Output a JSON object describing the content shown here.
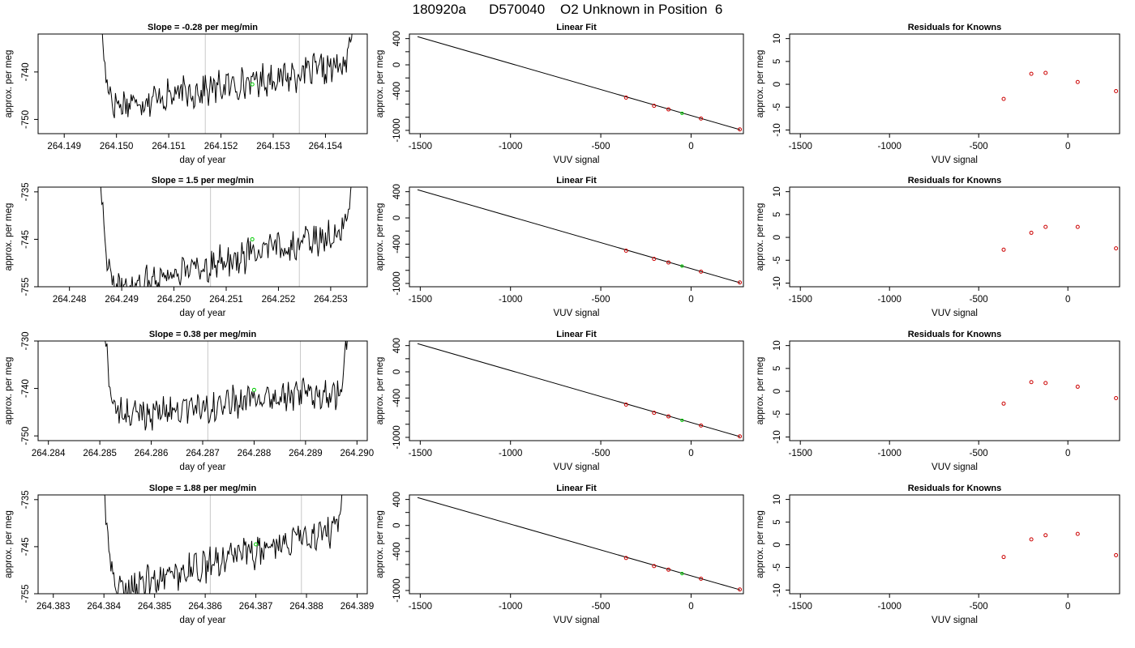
{
  "main_title": "180920a      D570040    O2 Unknown in Position  6",
  "chart_data": [
    {
      "type": "line",
      "title": "Slope =  -0.28  per meg/min",
      "xlabel": "day of year",
      "ylabel": "approx. per meg",
      "xlim": [
        264.1485,
        264.1548
      ],
      "ylim": [
        -753,
        -732
      ],
      "xticks": [
        "264.149",
        "264.150",
        "264.151",
        "264.152",
        "264.153",
        "264.154"
      ],
      "yticks": [
        "-740",
        "-750"
      ],
      "vlines": [
        264.1517,
        264.1535
      ],
      "trace": {
        "x_start": 264.1497,
        "x_end": 264.1545,
        "start_level": -747.5,
        "end_level": -738.5,
        "lead_in_top": -730,
        "lead_out_top": -732
      },
      "marker": {
        "x": 264.1526,
        "y": -742.6,
        "color": "#00cc00"
      }
    },
    {
      "type": "line",
      "title": "Slope =  1.5  per meg/min",
      "xlabel": "day of year",
      "ylabel": "approx. per meg",
      "xlim": [
        264.2474,
        264.2537
      ],
      "ylim": [
        -755,
        -734
      ],
      "xticks": [
        "264.248",
        "264.249",
        "264.250",
        "264.251",
        "264.252",
        "264.253"
      ],
      "yticks": [
        "-735",
        "-745",
        "-755"
      ],
      "vlines": [
        264.2507,
        264.2524
      ],
      "trace": {
        "x_start": 264.2486,
        "x_end": 264.2534,
        "start_level": -756,
        "end_level": -743,
        "lead_in_top": -733,
        "lead_out_top": -734
      },
      "marker": {
        "x": 264.2515,
        "y": -745,
        "color": "#00cc00"
      }
    },
    {
      "type": "line",
      "title": "Slope =  0.38  per meg/min",
      "xlabel": "day of year",
      "ylabel": "approx. per meg",
      "xlim": [
        264.2838,
        264.2902
      ],
      "ylim": [
        -751,
        -730
      ],
      "xticks": [
        "264.284",
        "264.285",
        "264.286",
        "264.287",
        "264.288",
        "264.289",
        "264.290"
      ],
      "yticks": [
        "-730",
        "-740",
        "-750"
      ],
      "vlines": [
        264.2871,
        264.2889
      ],
      "trace": {
        "x_start": 264.2851,
        "x_end": 264.2898,
        "start_level": -746,
        "end_level": -740.5,
        "lead_in_top": -729,
        "lead_out_top": -730
      },
      "marker": {
        "x": 264.288,
        "y": -740.3,
        "color": "#00cc00"
      }
    },
    {
      "type": "line",
      "title": "Slope =  1.88  per meg/min",
      "xlabel": "day of year",
      "ylabel": "approx. per meg",
      "xlim": [
        264.3827,
        264.3892
      ],
      "ylim": [
        -755,
        -734
      ],
      "xticks": [
        "264.383",
        "264.384",
        "264.385",
        "264.386",
        "264.387",
        "264.388",
        "264.389"
      ],
      "yticks": [
        "-735",
        "-745",
        "-755"
      ],
      "vlines": [
        264.3861,
        264.3879
      ],
      "trace": {
        "x_start": 264.384,
        "x_end": 264.3887,
        "start_level": -755,
        "end_level": -741,
        "lead_in_top": -733,
        "lead_out_top": -734
      },
      "marker": {
        "x": 264.387,
        "y": -744.5,
        "color": "#00cc00"
      }
    },
    {
      "type": "scatter",
      "title": "Linear Fit",
      "xlabel": "VUV signal",
      "ylabel": "approx. per meg",
      "xlim": [
        -1560,
        290
      ],
      "ylim": [
        -1050,
        470
      ],
      "xticks": [
        -1500,
        -1000,
        -500,
        0
      ],
      "yticks": [
        400,
        0,
        -400,
        -1000
      ],
      "yticks_minor": [
        200,
        -200,
        -600,
        -800
      ],
      "fit_line": [
        [
          -1515,
          430
        ],
        [
          272,
          -990
        ]
      ],
      "points": [
        [
          -360,
          -500
        ],
        [
          -205,
          -625
        ],
        [
          -125,
          -680
        ],
        [
          55,
          -820
        ],
        [
          270,
          -985
        ]
      ],
      "unknown": [
        -50,
        -740
      ],
      "point_color": "#cc0000",
      "unknown_color": "#00cc00"
    },
    {
      "type": "scatter",
      "title": "Linear Fit",
      "xlabel": "VUV signal",
      "ylabel": "approx. per meg",
      "xlim": [
        -1560,
        290
      ],
      "ylim": [
        -1050,
        470
      ],
      "xticks": [
        -1500,
        -1000,
        -500,
        0
      ],
      "yticks": [
        400,
        0,
        -400,
        -1000
      ],
      "yticks_minor": [
        200,
        -200,
        -600,
        -800
      ],
      "fit_line": [
        [
          -1515,
          430
        ],
        [
          272,
          -990
        ]
      ],
      "points": [
        [
          -360,
          -500
        ],
        [
          -205,
          -625
        ],
        [
          -125,
          -680
        ],
        [
          55,
          -820
        ],
        [
          270,
          -985
        ]
      ],
      "unknown": [
        -50,
        -735
      ],
      "point_color": "#cc0000",
      "unknown_color": "#00cc00"
    },
    {
      "type": "scatter",
      "title": "Linear Fit",
      "xlabel": "VUV signal",
      "ylabel": "approx. per meg",
      "xlim": [
        -1560,
        290
      ],
      "ylim": [
        -1050,
        470
      ],
      "xticks": [
        -1500,
        -1000,
        -500,
        0
      ],
      "yticks": [
        400,
        0,
        -400,
        -1000
      ],
      "yticks_minor": [
        200,
        -200,
        -600,
        -800
      ],
      "fit_line": [
        [
          -1515,
          430
        ],
        [
          272,
          -990
        ]
      ],
      "points": [
        [
          -360,
          -500
        ],
        [
          -205,
          -625
        ],
        [
          -125,
          -680
        ],
        [
          55,
          -820
        ],
        [
          270,
          -985
        ]
      ],
      "unknown": [
        -50,
        -740
      ],
      "point_color": "#cc0000",
      "unknown_color": "#00cc00"
    },
    {
      "type": "scatter",
      "title": "Linear Fit",
      "xlabel": "VUV signal",
      "ylabel": "approx. per meg",
      "xlim": [
        -1560,
        290
      ],
      "ylim": [
        -1050,
        470
      ],
      "xticks": [
        -1500,
        -1000,
        -500,
        0
      ],
      "yticks": [
        400,
        0,
        -400,
        -1000
      ],
      "yticks_minor": [
        200,
        -200,
        -600,
        -800
      ],
      "fit_line": [
        [
          -1515,
          430
        ],
        [
          272,
          -990
        ]
      ],
      "points": [
        [
          -360,
          -500
        ],
        [
          -205,
          -625
        ],
        [
          -125,
          -680
        ],
        [
          55,
          -820
        ],
        [
          270,
          -985
        ]
      ],
      "unknown": [
        -50,
        -740
      ],
      "point_color": "#cc0000",
      "unknown_color": "#00cc00"
    },
    {
      "type": "scatter",
      "title": "Residuals for Knowns",
      "xlabel": "VUV signal",
      "ylabel": "approx. per meg",
      "xlim": [
        -1560,
        290
      ],
      "ylim": [
        -10.8,
        11
      ],
      "xticks": [
        -1500,
        -1000,
        -500,
        0
      ],
      "yticks": [
        10,
        5,
        0,
        -5,
        -10
      ],
      "points": [
        [
          -360,
          -3.2
        ],
        [
          -205,
          2.3
        ],
        [
          -125,
          2.5
        ],
        [
          55,
          0.5
        ],
        [
          270,
          -1.5
        ]
      ],
      "point_color": "#cc0000"
    },
    {
      "type": "scatter",
      "title": "Residuals for Knowns",
      "xlabel": "VUV signal",
      "ylabel": "approx. per meg",
      "xlim": [
        -1560,
        290
      ],
      "ylim": [
        -10.8,
        11
      ],
      "xticks": [
        -1500,
        -1000,
        -500,
        0
      ],
      "yticks": [
        10,
        5,
        0,
        -5,
        -10
      ],
      "points": [
        [
          -360,
          -2.7
        ],
        [
          -205,
          1.0
        ],
        [
          -125,
          2.3
        ],
        [
          55,
          2.3
        ],
        [
          270,
          -2.4
        ]
      ],
      "point_color": "#cc0000"
    },
    {
      "type": "scatter",
      "title": "Residuals for Knowns",
      "xlabel": "VUV signal",
      "ylabel": "approx. per meg",
      "xlim": [
        -1560,
        290
      ],
      "ylim": [
        -10.8,
        11
      ],
      "xticks": [
        -1500,
        -1000,
        -500,
        0
      ],
      "yticks": [
        10,
        5,
        0,
        -5,
        -10
      ],
      "points": [
        [
          -360,
          -2.7
        ],
        [
          -205,
          2.0
        ],
        [
          -125,
          1.8
        ],
        [
          55,
          1.0
        ],
        [
          270,
          -1.5
        ]
      ],
      "point_color": "#cc0000"
    },
    {
      "type": "scatter",
      "title": "Residuals for Knowns",
      "xlabel": "VUV signal",
      "ylabel": "approx. per meg",
      "xlim": [
        -1560,
        290
      ],
      "ylim": [
        -10.8,
        11
      ],
      "xticks": [
        -1500,
        -1000,
        -500,
        0
      ],
      "yticks": [
        10,
        5,
        0,
        -5,
        -10
      ],
      "points": [
        [
          -360,
          -2.7
        ],
        [
          -205,
          1.2
        ],
        [
          -125,
          2.1
        ],
        [
          55,
          2.4
        ],
        [
          270,
          -2.3
        ]
      ],
      "point_color": "#cc0000"
    }
  ]
}
